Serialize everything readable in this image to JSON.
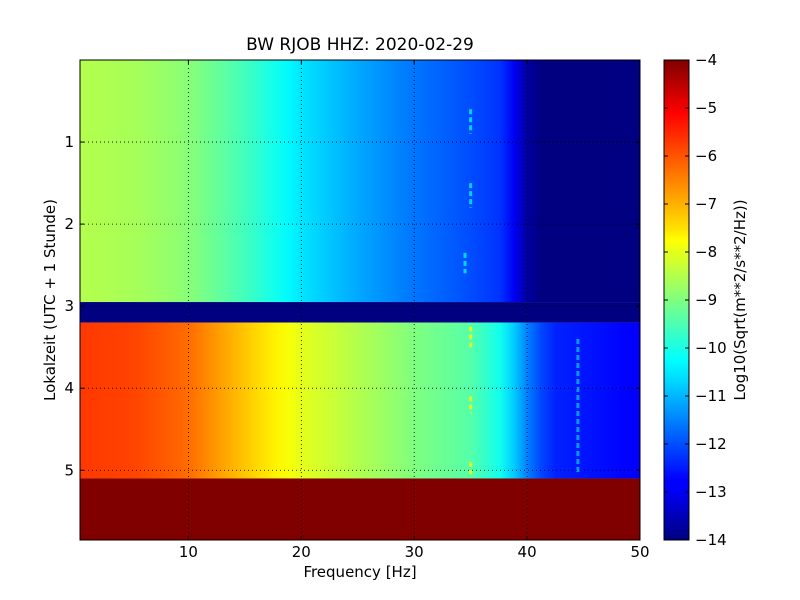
{
  "chart_data": {
    "type": "heatmap",
    "title": "BW RJOB HHZ: 2020-02-29",
    "xlabel": "Frequency [Hz]",
    "ylabel": "Lokalzeit (UTC + 1 Stunde)",
    "xlim": [
      0.4,
      50
    ],
    "ylim": [
      5.85,
      0
    ],
    "x_ticks": [
      10,
      20,
      30,
      40,
      50
    ],
    "y_ticks": [
      1,
      2,
      3,
      4,
      5
    ],
    "grid": true,
    "colormap": "jet",
    "colorbar": {
      "label": "Log10(Sqrt(m**2/s**2/Hz))",
      "range": [
        -14,
        -4
      ],
      "ticks": [
        -4,
        -5,
        -6,
        -7,
        -8,
        -9,
        -10,
        -11,
        -12,
        -13,
        -14
      ]
    },
    "segments": [
      {
        "name": "night",
        "t_start": 0.0,
        "t_end": 2.95,
        "profile": [
          [
            0.4,
            -8.5
          ],
          [
            5,
            -8.6
          ],
          [
            10,
            -8.9
          ],
          [
            15,
            -9.6
          ],
          [
            20,
            -10.5
          ],
          [
            25,
            -11.1
          ],
          [
            30,
            -11.6
          ],
          [
            35,
            -12.0
          ],
          [
            38,
            -12.3
          ],
          [
            39.5,
            -13.3
          ],
          [
            40.5,
            -14.0
          ],
          [
            50,
            -14.0
          ]
        ]
      },
      {
        "name": "gap",
        "t_start": 2.95,
        "t_end": 3.2,
        "value": -14.0
      },
      {
        "name": "day",
        "t_start": 3.2,
        "t_end": 5.1,
        "profile": [
          [
            0.4,
            -5.8
          ],
          [
            5,
            -5.9
          ],
          [
            10,
            -6.3
          ],
          [
            15,
            -7.2
          ],
          [
            20,
            -8.0
          ],
          [
            25,
            -8.5
          ],
          [
            30,
            -9.0
          ],
          [
            35,
            -9.4
          ],
          [
            38,
            -10.2
          ],
          [
            40,
            -11.5
          ],
          [
            42,
            -12.4
          ],
          [
            50,
            -12.8
          ]
        ]
      },
      {
        "name": "no-data",
        "t_start": 5.1,
        "t_end": 5.85,
        "value": -4.0
      }
    ],
    "spectral_lines": [
      {
        "freq": 35,
        "t_start": 0.6,
        "t_end": 0.9,
        "segment": "night"
      },
      {
        "freq": 35,
        "t_start": 1.5,
        "t_end": 1.8,
        "segment": "night"
      },
      {
        "freq": 34.5,
        "t_start": 2.35,
        "t_end": 2.6,
        "segment": "night"
      },
      {
        "freq": 35,
        "t_start": 3.25,
        "t_end": 3.5,
        "segment": "day"
      },
      {
        "freq": 35,
        "t_start": 4.1,
        "t_end": 4.3,
        "segment": "day"
      },
      {
        "freq": 35,
        "t_start": 4.9,
        "t_end": 5.05,
        "segment": "day"
      },
      {
        "freq": 44.5,
        "t_start": 3.4,
        "t_end": 5.05,
        "segment": "day"
      }
    ]
  }
}
